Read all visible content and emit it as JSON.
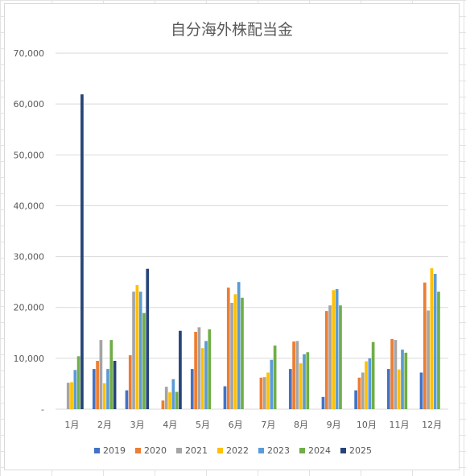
{
  "chart_data": {
    "type": "bar",
    "title": "自分海外株配当金",
    "categories": [
      "1月",
      "2月",
      "3月",
      "4月",
      "5月",
      "6月",
      "7月",
      "8月",
      "9月",
      "10月",
      "11月",
      "12月"
    ],
    "y_ticks": [
      "-",
      "10,000",
      "20,000",
      "30,000",
      "40,000",
      "50,000",
      "60,000",
      "70,000"
    ],
    "ylim": [
      0,
      70000
    ],
    "grid": true,
    "legend_position": "bottom",
    "series": [
      {
        "name": "2019",
        "color": "#4472c4",
        "values": [
          0,
          7900,
          3700,
          0,
          7900,
          4500,
          0,
          7900,
          2400,
          3700,
          7900,
          7200
        ]
      },
      {
        "name": "2020",
        "color": "#ed7d31",
        "values": [
          0,
          9500,
          10600,
          1700,
          15200,
          23900,
          6200,
          13300,
          19300,
          6200,
          13800,
          24900
        ]
      },
      {
        "name": "2021",
        "color": "#a5a5a5",
        "values": [
          5200,
          13600,
          23100,
          4400,
          16100,
          20900,
          6300,
          13400,
          20400,
          7200,
          13600,
          19400
        ]
      },
      {
        "name": "2022",
        "color": "#ffc000",
        "values": [
          5300,
          5100,
          24400,
          3300,
          12000,
          22600,
          7200,
          9000,
          23400,
          9400,
          7800,
          27700
        ]
      },
      {
        "name": "2023",
        "color": "#5b9bd5",
        "values": [
          7700,
          7900,
          23100,
          5900,
          13400,
          25000,
          9700,
          10800,
          23600,
          10000,
          11700,
          26600
        ]
      },
      {
        "name": "2024",
        "color": "#70ad47",
        "values": [
          10400,
          13600,
          18900,
          3400,
          15700,
          21900,
          12500,
          11200,
          20400,
          13200,
          11100,
          23100
        ]
      },
      {
        "name": "2025",
        "color": "#264478",
        "values": [
          61900,
          9500,
          27600,
          15400,
          0,
          0,
          0,
          0,
          0,
          0,
          0,
          0
        ]
      }
    ]
  }
}
